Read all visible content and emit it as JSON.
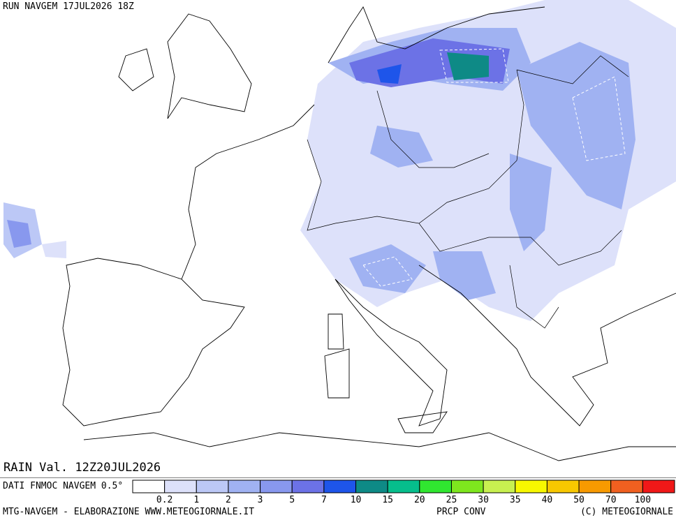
{
  "header": {
    "run": "RUN NAVGEM 17JUL2026 18Z"
  },
  "map": {
    "valid": "RAIN Val. 12Z20JUL2026"
  },
  "legend": {
    "source": "DATI FNMOC NAVGEM 0.5°",
    "colors": [
      "#ffffff",
      "#dde1fa",
      "#bcc8f6",
      "#a0b2f2",
      "#8898ee",
      "#6c72e6",
      "#1e55ea",
      "#0e8a86",
      "#06be8c",
      "#30e630",
      "#7ee61e",
      "#c8f050",
      "#f8f800",
      "#f8c800",
      "#f89a00",
      "#f06020",
      "#f01818"
    ],
    "labels": [
      0.2,
      1,
      2,
      3,
      5,
      7,
      10,
      15,
      20,
      25,
      30,
      35,
      40,
      50,
      70,
      100
    ]
  },
  "footer": {
    "left": "MTG-NAVGEM - ELABORAZIONE WWW.METEOGIORNALE.IT",
    "center": "PRCP CONV",
    "right": "(C) METEOGIORNALE"
  }
}
